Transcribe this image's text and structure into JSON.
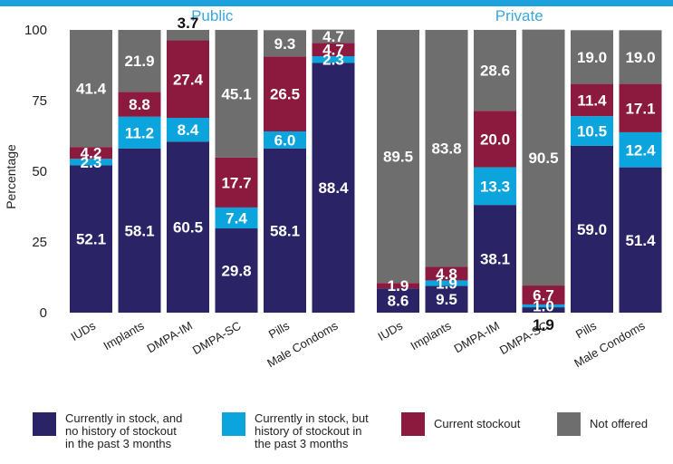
{
  "chart_data": {
    "type": "bar",
    "stacked": true,
    "ylabel": "Percentage",
    "yticks": [
      0,
      25,
      50,
      75,
      100
    ],
    "ylim": [
      0,
      100
    ],
    "colors": {
      "in_stock": "#2a2466",
      "in_stock_history": "#0ba4dc",
      "stockout": "#8b1a3e",
      "not_offered": "#6e6e6e",
      "panel_title": "#3aa7dd",
      "top_bar": "#1ba1dd"
    },
    "series": [
      {
        "key": "in_stock",
        "name": "Currently in stock, and\nno history of stockout\nin the past 3 months"
      },
      {
        "key": "in_stock_history",
        "name": "Currently in stock, but\nhistory of stockout in\nthe past 3 months"
      },
      {
        "key": "stockout",
        "name": "Current stockout"
      },
      {
        "key": "not_offered",
        "name": "Not offered"
      }
    ],
    "panels": [
      {
        "title": "Public",
        "categories": [
          "IUDs",
          "Implants",
          "DMPA-IM",
          "DMPA-SC",
          "Pills",
          "Male Condoms"
        ],
        "values": {
          "in_stock": [
            52.1,
            58.1,
            60.5,
            29.8,
            58.1,
            88.4
          ],
          "in_stock_history": [
            2.3,
            11.2,
            8.4,
            7.4,
            6.0,
            2.3
          ],
          "stockout": [
            4.2,
            8.8,
            27.4,
            17.7,
            26.5,
            4.7
          ],
          "not_offered": [
            41.4,
            21.9,
            3.7,
            45.1,
            9.3,
            4.7
          ]
        }
      },
      {
        "title": "Private",
        "categories": [
          "IUDs",
          "Implants",
          "DMPA-IM",
          "DMPA-SC",
          "Pills",
          "Male Condoms"
        ],
        "values": {
          "in_stock": [
            8.6,
            9.5,
            38.1,
            1.9,
            59.0,
            51.4
          ],
          "in_stock_history": [
            0,
            1.9,
            13.3,
            1.0,
            10.5,
            12.4
          ],
          "stockout": [
            1.9,
            4.8,
            20.0,
            6.7,
            11.4,
            17.1
          ],
          "not_offered": [
            89.5,
            83.8,
            28.6,
            90.5,
            19.0,
            19.0
          ]
        }
      }
    ]
  }
}
